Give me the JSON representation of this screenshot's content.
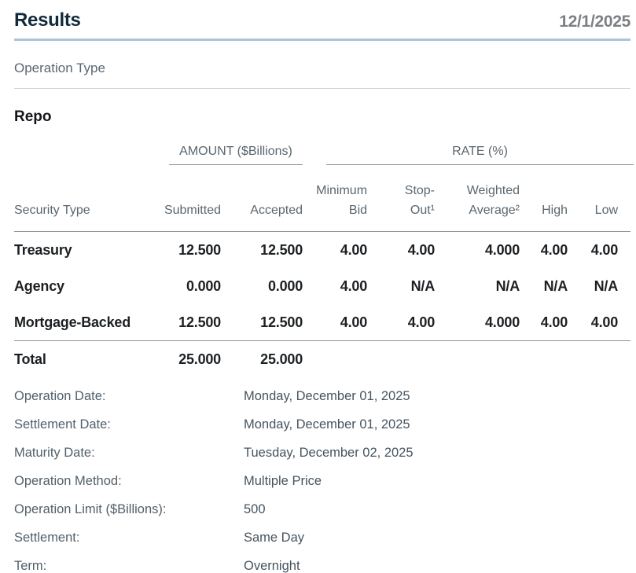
{
  "header": {
    "title": "Results",
    "date": "12/1/2025"
  },
  "filters": {
    "operation_type_label": "Operation Type"
  },
  "section": {
    "title": "Repo"
  },
  "table": {
    "group_headers": {
      "amount": "AMOUNT ($Billions)",
      "rate": "RATE (%)"
    },
    "columns": {
      "security_type": "Security Type",
      "submitted": "Submitted",
      "accepted": "Accepted",
      "minimum_bid": "Minimum\nBid",
      "stop_out": "Stop-\nOut¹",
      "weighted_average": "Weighted\nAverage²",
      "high": "High",
      "low": "Low"
    },
    "rows": [
      {
        "security_type": "Treasury",
        "submitted": "12.500",
        "accepted": "12.500",
        "minimum_bid": "4.00",
        "stop_out": "4.00",
        "weighted_average": "4.000",
        "high": "4.00",
        "low": "4.00"
      },
      {
        "security_type": "Agency",
        "submitted": "0.000",
        "accepted": "0.000",
        "minimum_bid": "4.00",
        "stop_out": "N/A",
        "weighted_average": "N/A",
        "high": "N/A",
        "low": "N/A"
      },
      {
        "security_type": "Mortgage-Backed",
        "submitted": "12.500",
        "accepted": "12.500",
        "minimum_bid": "4.00",
        "stop_out": "4.00",
        "weighted_average": "4.000",
        "high": "4.00",
        "low": "4.00"
      }
    ],
    "total": {
      "label": "Total",
      "submitted": "25.000",
      "accepted": "25.000"
    }
  },
  "details": [
    {
      "label": "Operation Date:",
      "value": "Monday, December 01, 2025"
    },
    {
      "label": "Settlement Date:",
      "value": "Monday, December 01, 2025"
    },
    {
      "label": "Maturity Date:",
      "value": "Tuesday, December 02, 2025"
    },
    {
      "label": "Operation Method:",
      "value": "Multiple Price"
    },
    {
      "label": "Operation Limit ($Billions):",
      "value": "500"
    },
    {
      "label": "Settlement:",
      "value": "Same Day"
    },
    {
      "label": "Term:",
      "value": "Overnight"
    }
  ],
  "colors": {
    "title_navy": "#13293e",
    "date_gray": "#7c8084",
    "accent_rule_blue": "#a9c5d8",
    "muted_slate": "#5a6670",
    "divider_gray": "#8d969d",
    "light_divider": "#d0d4d7",
    "data_black": "#1d2023"
  }
}
